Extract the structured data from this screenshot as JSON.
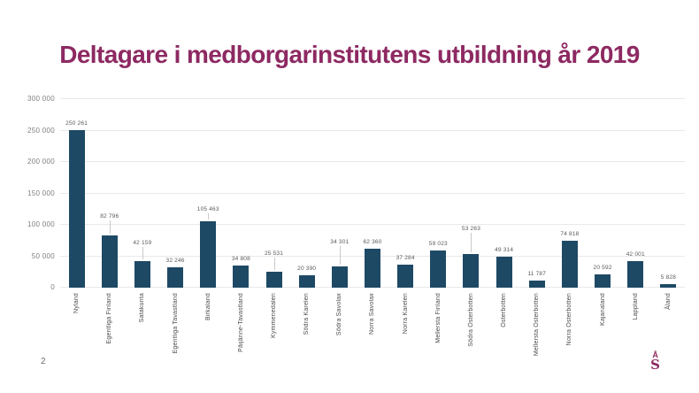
{
  "slide": {
    "title": "Deltagare i medborgarinstitutens utbildning år 2019",
    "page_number": "2",
    "logo": {
      "top": "Å",
      "bottom": "S"
    }
  },
  "colors": {
    "title": "#8D2962",
    "bar": "#1E4965",
    "gridline": "#E9E9E9",
    "y_axis_text": "#7F7F7F",
    "x_axis_text": "#4A4A4A",
    "data_label_text": "#595959",
    "leader_line": "#C9C9C9",
    "logo": "#8D2962"
  },
  "chart_data": {
    "type": "bar",
    "title": "Deltagare i medborgarinstitutens utbildning år 2019",
    "categories": [
      "Nyland",
      "Egentliga Finland",
      "Satakunta",
      "Egentliga Tavastland",
      "Birkaland",
      "Päijänne-Tavastland",
      "Kymmenedalen",
      "Södra Karelen",
      "Södra Savolax",
      "Norra Savolax",
      "Norra Karelen",
      "Mellersta Finland",
      "Södra Österbotten",
      "Österbotten",
      "Mellersta Österbotten",
      "Norra Österbotten",
      "Kajanaland",
      "Lappland",
      "Åland"
    ],
    "values": [
      250261,
      82796,
      42159,
      32246,
      105463,
      34808,
      25531,
      20390,
      34301,
      62360,
      37284,
      59023,
      53263,
      49314,
      11787,
      74818,
      20592,
      42001,
      5828
    ],
    "xlabel": "",
    "ylabel": "",
    "ylim": [
      0,
      300000
    ],
    "ytick_step": 50000,
    "ytick_labels": [
      "0",
      "50 000",
      "100 000",
      "150 000",
      "200 000",
      "250 000",
      "300 000"
    ],
    "grid": true,
    "legend": false,
    "data_labels": true,
    "number_format": "space-thousands"
  }
}
